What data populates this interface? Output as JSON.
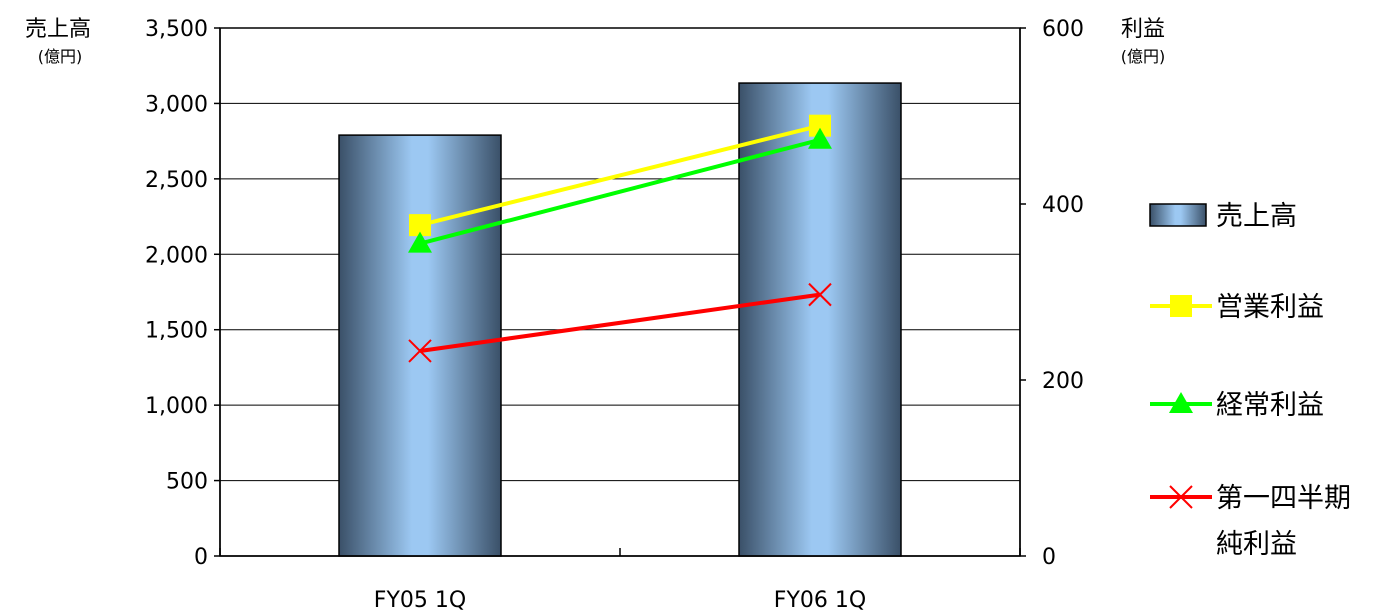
{
  "chart_data": {
    "type": "bar",
    "categories": [
      "FY05 1Q",
      "FY06 1Q"
    ],
    "y_left": {
      "label": "売上高",
      "unit": "(億円)",
      "range": [
        0,
        3500
      ],
      "ticks": [
        0,
        500,
        1000,
        1500,
        2000,
        2500,
        3000,
        3500
      ],
      "tick_labels": [
        "0",
        "500",
        "1,000",
        "1,500",
        "2,000",
        "2,500",
        "3,000",
        "3,500"
      ]
    },
    "y_right": {
      "label": "利益",
      "unit": "(億円)",
      "range": [
        0,
        600
      ],
      "ticks": [
        0,
        200,
        400,
        600
      ],
      "tick_labels": [
        "0",
        "200",
        "400",
        "600"
      ]
    },
    "series": [
      {
        "name": "売上高",
        "chart": "bar",
        "axis": "left",
        "values": [
          2790,
          3135
        ],
        "color": "#8fbfe8"
      },
      {
        "name": "営業利益",
        "chart": "line",
        "marker": "square",
        "axis": "right",
        "values": [
          376,
          489
        ],
        "color": "#ffff00"
      },
      {
        "name": "経常利益",
        "chart": "line",
        "marker": "triangle",
        "axis": "right",
        "values": [
          355,
          473
        ],
        "color": "#00ff00"
      },
      {
        "name_lines": [
          "第一四半期",
          "純利益"
        ],
        "chart": "line",
        "marker": "x",
        "axis": "right",
        "values": [
          233,
          297
        ],
        "color": "#ff0000"
      }
    ],
    "grid": true,
    "legend_position": "right"
  }
}
